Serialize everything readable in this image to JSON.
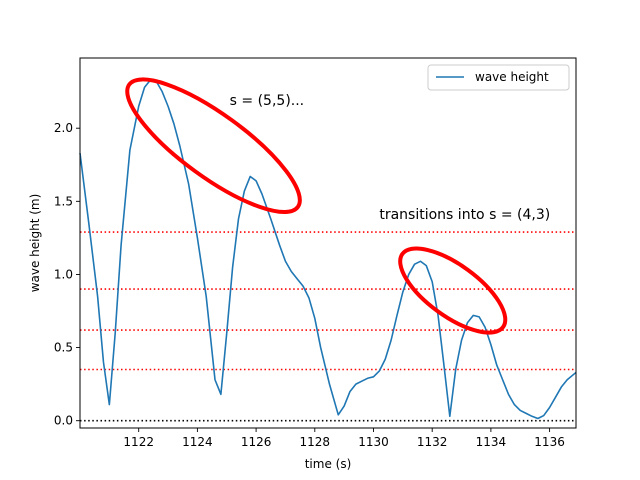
{
  "chart_data": {
    "type": "line",
    "title": "",
    "xlabel": "time (s)",
    "ylabel": "wave height (m)",
    "xlim": [
      1120.0,
      1136.9
    ],
    "ylim": [
      -0.05,
      2.48
    ],
    "grid": false,
    "legend": {
      "placement": "top-right",
      "entries": [
        "wave height"
      ]
    },
    "x_ticks": [
      1122,
      1124,
      1126,
      1128,
      1130,
      1132,
      1134,
      1136
    ],
    "y_ticks": [
      0.0,
      0.5,
      1.0,
      1.5,
      2.0
    ],
    "x_tick_labels": [
      "1122",
      "1124",
      "1126",
      "1128",
      "1130",
      "1132",
      "1134",
      "1136"
    ],
    "y_tick_labels": [
      "0.0",
      "0.5",
      "1.0",
      "1.5",
      "2.0"
    ],
    "series": [
      {
        "name": "wave height",
        "color": "#1f77b4",
        "x": [
          1120.0,
          1120.3,
          1120.6,
          1120.8,
          1121.0,
          1121.2,
          1121.4,
          1121.7,
          1122.0,
          1122.2,
          1122.4,
          1122.6,
          1122.8,
          1123.0,
          1123.2,
          1123.4,
          1123.7,
          1124.0,
          1124.3,
          1124.6,
          1124.8,
          1125.0,
          1125.2,
          1125.4,
          1125.6,
          1125.8,
          1126.0,
          1126.2,
          1126.5,
          1126.8,
          1127.0,
          1127.2,
          1127.4,
          1127.6,
          1127.8,
          1128.0,
          1128.2,
          1128.5,
          1128.8,
          1129.0,
          1129.2,
          1129.4,
          1129.6,
          1129.8,
          1130.0,
          1130.2,
          1130.4,
          1130.6,
          1130.8,
          1131.0,
          1131.2,
          1131.4,
          1131.6,
          1131.8,
          1132.0,
          1132.2,
          1132.4,
          1132.6,
          1132.8,
          1133.0,
          1133.2,
          1133.4,
          1133.6,
          1133.8,
          1134.0,
          1134.2,
          1134.4,
          1134.6,
          1134.8,
          1135.0,
          1135.2,
          1135.4,
          1135.6,
          1135.8,
          1136.0,
          1136.2,
          1136.4,
          1136.6,
          1136.9
        ],
        "y": [
          1.83,
          1.35,
          0.85,
          0.4,
          0.11,
          0.6,
          1.2,
          1.85,
          2.15,
          2.28,
          2.33,
          2.32,
          2.25,
          2.15,
          2.03,
          1.88,
          1.62,
          1.25,
          0.85,
          0.28,
          0.18,
          0.6,
          1.05,
          1.38,
          1.57,
          1.67,
          1.64,
          1.55,
          1.38,
          1.2,
          1.09,
          1.02,
          0.97,
          0.92,
          0.84,
          0.7,
          0.5,
          0.25,
          0.04,
          0.1,
          0.2,
          0.25,
          0.27,
          0.29,
          0.3,
          0.34,
          0.42,
          0.55,
          0.72,
          0.88,
          1.0,
          1.07,
          1.09,
          1.06,
          0.95,
          0.72,
          0.38,
          0.03,
          0.35,
          0.55,
          0.67,
          0.72,
          0.71,
          0.64,
          0.52,
          0.38,
          0.28,
          0.18,
          0.11,
          0.07,
          0.05,
          0.03,
          0.015,
          0.035,
          0.09,
          0.16,
          0.23,
          0.28,
          0.33
        ]
      }
    ],
    "reference_lines": [
      {
        "y": 0.0,
        "color": "#000000",
        "style": "dotted"
      },
      {
        "y": 0.35,
        "color": "#ff0000",
        "style": "dotted"
      },
      {
        "y": 0.62,
        "color": "#ff0000",
        "style": "dotted"
      },
      {
        "y": 0.9,
        "color": "#ff0000",
        "style": "dotted"
      },
      {
        "y": 1.29,
        "color": "#ff0000",
        "style": "dotted"
      }
    ],
    "annotations": [
      {
        "text": "s = (5,5)...",
        "x": 1125.1,
        "y": 2.16
      },
      {
        "text": "transitions into s = (4,3)",
        "x": 1130.2,
        "y": 1.38
      }
    ],
    "highlight_ellipses": [
      {
        "cx": 1124.55,
        "cy": 1.88,
        "rx_data": 3.55,
        "ry_data": 0.215,
        "angle_deg": 36,
        "color": "#ff0000"
      },
      {
        "cx": 1132.7,
        "cy": 0.89,
        "rx_data": 2.12,
        "ry_data": 0.175,
        "angle_deg": 36,
        "color": "#ff0000"
      }
    ]
  }
}
